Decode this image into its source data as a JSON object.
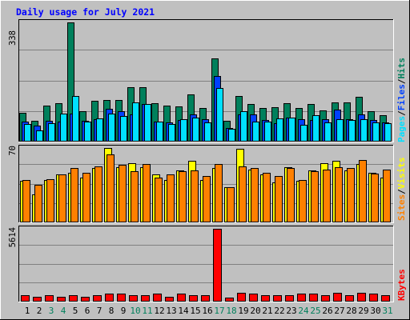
{
  "title": "Daily usage for July 2021",
  "colors": {
    "background": "#c0c0c0",
    "plot_background": "#c0c0c0",
    "grid": "#808080",
    "title_text": "#0000ff",
    "hits": "#00805c",
    "files": "#0040ff",
    "pages": "#00e0ff",
    "visits": "#ffff00",
    "sites": "#ff8000",
    "kbytes": "#ff0000",
    "weekend_label": "#00805c",
    "weekday_label": "#000000"
  },
  "legend": {
    "pages": "Pages",
    "files": "Files",
    "hits": "Hits",
    "sites": "Sites",
    "visits": "Visits",
    "kbytes": "KBytes",
    "sep": "/"
  },
  "chart_data": [
    {
      "type": "bar",
      "panel": "hits-files-pages",
      "ymax_label": "338",
      "ylim": [
        0,
        338
      ],
      "grid": true,
      "categories": [
        "1",
        "2",
        "3",
        "4",
        "5",
        "6",
        "7",
        "8",
        "9",
        "10",
        "11",
        "12",
        "13",
        "14",
        "15",
        "16",
        "17",
        "18",
        "19",
        "20",
        "21",
        "22",
        "23",
        "24",
        "25",
        "26",
        "27",
        "28",
        "29",
        "30",
        "31"
      ],
      "weekend": [
        3,
        4,
        10,
        11,
        17,
        18,
        24,
        25,
        31
      ],
      "series": [
        {
          "name": "Hits",
          "values": [
            82,
            60,
            102,
            108,
            338,
            86,
            115,
            119,
            117,
            154,
            154,
            110,
            102,
            100,
            134,
            95,
            237,
            58,
            129,
            106,
            96,
            98,
            110,
            96,
            106,
            89,
            112,
            112,
            127,
            86,
            74
          ]
        },
        {
          "name": "Files",
          "values": [
            56,
            46,
            58,
            57,
            80,
            58,
            63,
            92,
            86,
            78,
            106,
            57,
            55,
            62,
            78,
            64,
            187,
            39,
            76,
            77,
            62,
            53,
            68,
            64,
            61,
            63,
            91,
            64,
            77,
            62,
            54
          ]
        },
        {
          "name": "Pages",
          "values": [
            51,
            31,
            52,
            80,
            130,
            56,
            66,
            80,
            73,
            112,
            106,
            57,
            51,
            64,
            67,
            55,
            153,
            37,
            86,
            57,
            56,
            65,
            67,
            48,
            74,
            55,
            64,
            62,
            63,
            55,
            53
          ]
        }
      ]
    },
    {
      "type": "bar",
      "panel": "sites-visits",
      "ymax_label": "70",
      "ylim": [
        0,
        70
      ],
      "grid": true,
      "categories": [
        "1",
        "2",
        "3",
        "4",
        "5",
        "6",
        "7",
        "8",
        "9",
        "10",
        "11",
        "12",
        "13",
        "14",
        "15",
        "16",
        "17",
        "18",
        "19",
        "20",
        "21",
        "22",
        "23",
        "24",
        "25",
        "26",
        "27",
        "28",
        "29",
        "30",
        "31"
      ],
      "series": [
        {
          "name": "Visits",
          "values": [
            39,
            26,
            40,
            45,
            47,
            42,
            51,
            70,
            52,
            56,
            52,
            45,
            40,
            49,
            58,
            40,
            51,
            33,
            69,
            50,
            45,
            38,
            52,
            39,
            49,
            56,
            58,
            49,
            55,
            47,
            42
          ]
        },
        {
          "name": "Sites",
          "values": [
            40,
            35,
            41,
            45,
            51,
            47,
            53,
            64,
            54,
            48,
            55,
            42,
            45,
            48,
            49,
            44,
            55,
            33,
            53,
            51,
            47,
            44,
            51,
            40,
            48,
            50,
            52,
            51,
            59,
            46,
            50
          ]
        }
      ]
    },
    {
      "type": "bar",
      "panel": "kbytes",
      "ymax_label": "5614",
      "ylim": [
        0,
        5614
      ],
      "grid": true,
      "categories": [
        "1",
        "2",
        "3",
        "4",
        "5",
        "6",
        "7",
        "8",
        "9",
        "10",
        "11",
        "12",
        "13",
        "14",
        "15",
        "16",
        "17",
        "18",
        "19",
        "20",
        "21",
        "22",
        "23",
        "24",
        "25",
        "26",
        "27",
        "28",
        "29",
        "30",
        "31"
      ],
      "series": [
        {
          "name": "KBytes",
          "values": [
            500,
            400,
            500,
            400,
            500,
            400,
            500,
            600,
            600,
            500,
            500,
            600,
            400,
            600,
            500,
            500,
            5614,
            300,
            700,
            600,
            500,
            500,
            500,
            600,
            600,
            500,
            700,
            500,
            700,
            600,
            500
          ]
        }
      ]
    }
  ]
}
